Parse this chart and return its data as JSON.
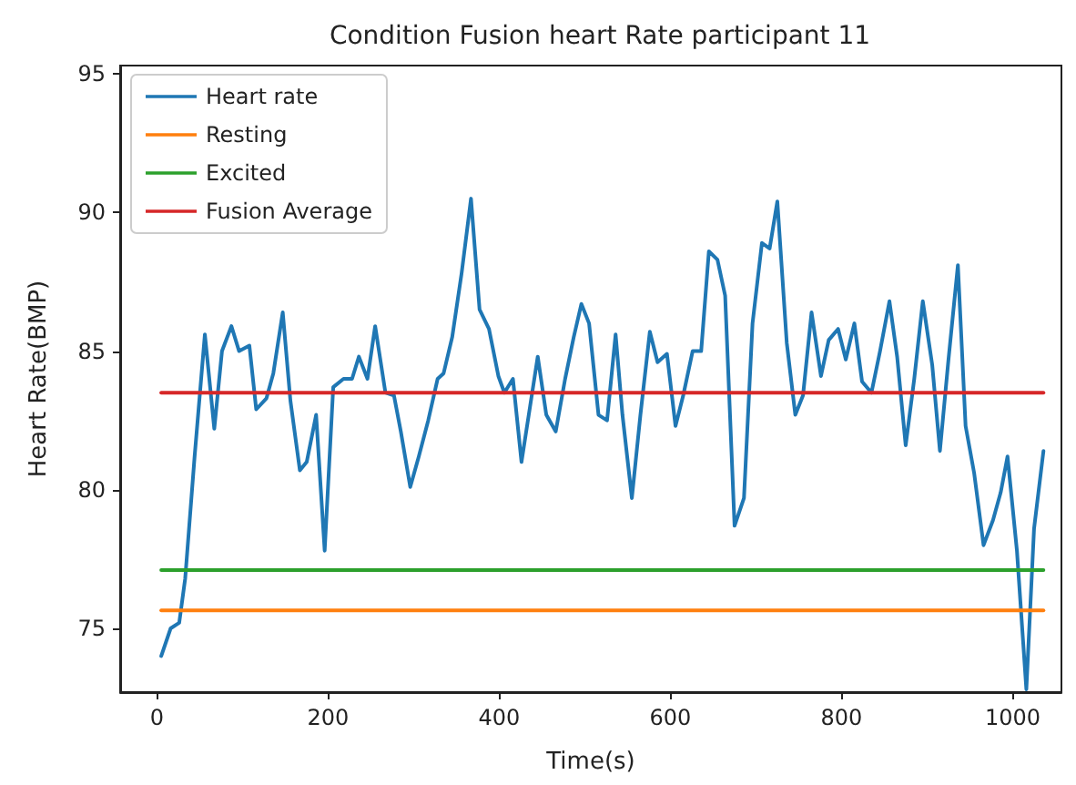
{
  "chart_data": {
    "type": "line",
    "title": "Condition Fusion heart Rate participant 11",
    "xlabel": "Time(s)",
    "ylabel": "Heart Rate(BMP)",
    "xlim": [
      -43,
      1057
    ],
    "ylim": [
      72.7,
      95.3
    ],
    "xticks": [
      0,
      200,
      400,
      600,
      800,
      1000
    ],
    "yticks": [
      75,
      80,
      85,
      90,
      95
    ],
    "grid": false,
    "legend": "top left",
    "marker": "none",
    "line_style": "solid",
    "series": [
      {
        "name": "Heart rate",
        "color": "#1f77b4",
        "x": [
          5,
          16,
          26,
          33,
          44,
          56,
          67,
          76,
          87,
          96,
          108,
          116,
          128,
          136,
          147,
          156,
          167,
          175,
          186,
          196,
          206,
          218,
          228,
          236,
          246,
          255,
          267,
          277,
          285,
          296,
          306,
          317,
          328,
          335,
          345,
          356,
          367,
          377,
          388,
          399,
          406,
          416,
          426,
          436,
          445,
          455,
          466,
          477,
          487,
          496,
          505,
          516,
          526,
          536,
          544,
          555,
          565,
          576,
          585,
          596,
          606,
          615,
          626,
          636,
          645,
          655,
          664,
          675,
          686,
          696,
          707,
          716,
          725,
          736,
          746,
          755,
          765,
          776,
          785,
          796,
          805,
          815,
          824,
          835,
          845,
          856,
          865,
          875,
          885,
          895,
          906,
          915,
          925,
          936,
          945,
          955,
          966,
          977,
          986,
          994,
          1005,
          1016,
          1025,
          1036
        ],
        "values": [
          74.0,
          75.0,
          75.2,
          76.8,
          81.2,
          85.6,
          82.2,
          85.0,
          85.9,
          85.0,
          85.2,
          82.9,
          83.3,
          84.2,
          86.4,
          83.2,
          80.7,
          81.0,
          82.7,
          77.8,
          83.7,
          84.0,
          84.0,
          84.8,
          84.0,
          85.9,
          83.5,
          83.4,
          82.1,
          80.1,
          81.2,
          82.5,
          84.0,
          84.2,
          85.5,
          87.8,
          90.5,
          86.5,
          85.8,
          84.1,
          83.5,
          84.0,
          81.0,
          83.0,
          84.8,
          82.7,
          82.1,
          84.0,
          85.5,
          86.7,
          86.0,
          82.7,
          82.5,
          85.6,
          82.7,
          79.7,
          82.7,
          85.7,
          84.6,
          84.9,
          82.3,
          83.4,
          85.0,
          85.0,
          88.6,
          88.3,
          87.0,
          78.7,
          79.7,
          86.0,
          88.9,
          88.7,
          90.4,
          85.3,
          82.7,
          83.4,
          86.4,
          84.1,
          85.4,
          85.8,
          84.7,
          86.0,
          83.9,
          83.5,
          85.0,
          86.8,
          84.8,
          81.6,
          84.0,
          86.8,
          84.5,
          81.4,
          84.7,
          88.1,
          82.3,
          80.6,
          78.0,
          78.9,
          79.9,
          81.2,
          77.8,
          72.8,
          78.6,
          81.4
        ]
      },
      {
        "name": "Resting",
        "color": "#ff7f0e",
        "x": [
          5,
          1036
        ],
        "values": [
          75.65,
          75.65
        ]
      },
      {
        "name": "Excited",
        "color": "#2ca02c",
        "x": [
          5,
          1036
        ],
        "values": [
          77.1,
          77.1
        ]
      },
      {
        "name": "Fusion Average",
        "color": "#d62728",
        "x": [
          5,
          1036
        ],
        "values": [
          83.5,
          83.5
        ]
      }
    ]
  }
}
